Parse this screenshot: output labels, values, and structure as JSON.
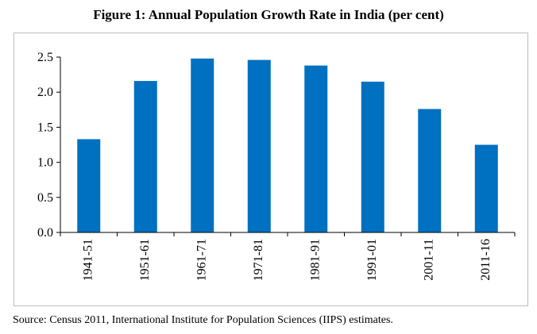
{
  "title": "Figure 1: Annual Population Growth Rate in India (per cent)",
  "source": "Source: Census 2011, International Institute for Population Sciences (IIPS) estimates.",
  "colors": {
    "bar": "#0070c0",
    "axis": "#000000",
    "frame": "#bdbdbd"
  },
  "chart_data": {
    "type": "bar",
    "title": "Figure 1: Annual Population Growth Rate in India (per cent)",
    "xlabel": "",
    "ylabel": "",
    "categories": [
      "1941-51",
      "1951-61",
      "1961-71",
      "1971-81",
      "1981-91",
      "1991-01",
      "2001-11",
      "2011-16"
    ],
    "values": [
      1.33,
      2.16,
      2.48,
      2.46,
      2.38,
      2.15,
      1.76,
      1.25
    ],
    "ylim": [
      0,
      2.5
    ],
    "yticks": [
      "0.0",
      "0.5",
      "1.0",
      "1.5",
      "2.0",
      "2.5"
    ],
    "grid": false,
    "legend": "none"
  }
}
